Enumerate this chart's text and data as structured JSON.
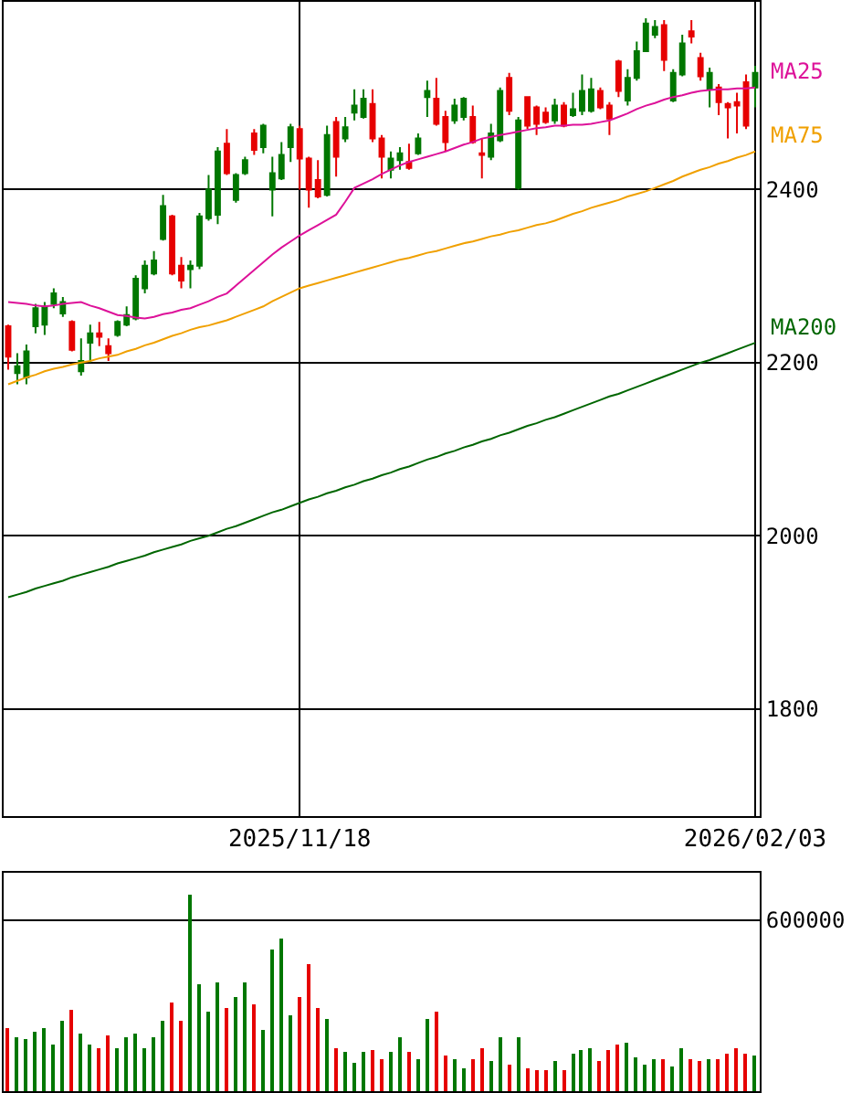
{
  "chart_data": [
    {
      "type": "candlestick",
      "categories": [
        null,
        null,
        null,
        null,
        null,
        null,
        null,
        null,
        null,
        null,
        null,
        null,
        null,
        null,
        null,
        null,
        null,
        null,
        null,
        null,
        null,
        null,
        null,
        null,
        null,
        null,
        null,
        null,
        null,
        null,
        null,
        null,
        "2025/11/18",
        null,
        null,
        null,
        null,
        null,
        null,
        null,
        null,
        null,
        null,
        null,
        null,
        null,
        null,
        null,
        null,
        null,
        null,
        null,
        null,
        null,
        null,
        null,
        null,
        null,
        null,
        null,
        null,
        null,
        null,
        null,
        null,
        null,
        null,
        null,
        null,
        null,
        null,
        null,
        null,
        null,
        null,
        null,
        null,
        null,
        null,
        null,
        null,
        null,
        "2026/02/03"
      ],
      "ohlc": [
        [
          2242,
          2244,
          2192,
          2207
        ],
        [
          2188,
          2211,
          2175,
          2196
        ],
        [
          2183,
          2221,
          2175,
          2213
        ],
        [
          2242,
          2268,
          2234,
          2263
        ],
        [
          2244,
          2270,
          2232,
          2265
        ],
        [
          2268,
          2286,
          2263,
          2280
        ],
        [
          2257,
          2276,
          2253,
          2270
        ],
        [
          2247,
          2249,
          2213,
          2215
        ],
        [
          2190,
          2228,
          2185,
          2202
        ],
        [
          2223,
          2244,
          2200,
          2234
        ],
        [
          2234,
          2247,
          2219,
          2230
        ],
        [
          2219,
          2228,
          2202,
          2211
        ],
        [
          2232,
          2249,
          2230,
          2247
        ],
        [
          2244,
          2265,
          2242,
          2255
        ],
        [
          2251,
          2301,
          2249,
          2297
        ],
        [
          2286,
          2318,
          2280,
          2312
        ],
        [
          2303,
          2329,
          2301,
          2318
        ],
        [
          2343,
          2394,
          2341,
          2381
        ],
        [
          2369,
          2371,
          2301,
          2303
        ],
        [
          2312,
          2322,
          2286,
          2295
        ],
        [
          2308,
          2318,
          2286,
          2312
        ],
        [
          2312,
          2373,
          2308,
          2369
        ],
        [
          2367,
          2417,
          2364,
          2400
        ],
        [
          2371,
          2449,
          2360,
          2444
        ],
        [
          2453,
          2470,
          2417,
          2419
        ],
        [
          2388,
          2419,
          2385,
          2417
        ],
        [
          2419,
          2438,
          2417,
          2434
        ],
        [
          2465,
          2470,
          2440,
          2446
        ],
        [
          2449,
          2476,
          2442,
          2474
        ],
        [
          2400,
          2438,
          2369,
          2419
        ],
        [
          2413,
          2455,
          2411,
          2440
        ],
        [
          2449,
          2476,
          2432,
          2472
        ],
        [
          2470,
          2474,
          2400,
          2436
        ],
        [
          2436,
          2438,
          2379,
          2400
        ],
        [
          2411,
          2434,
          2390,
          2392
        ],
        [
          2394,
          2474,
          2392,
          2463
        ],
        [
          2478,
          2484,
          2415,
          2438
        ],
        [
          2459,
          2484,
          2455,
          2472
        ],
        [
          2489,
          2516,
          2480,
          2497
        ],
        [
          2484,
          2516,
          2482,
          2505
        ],
        [
          2499,
          2516,
          2455,
          2459
        ],
        [
          2459,
          2463,
          2413,
          2438
        ],
        [
          2423,
          2444,
          2413,
          2436
        ],
        [
          2434,
          2449,
          2423,
          2442
        ],
        [
          2432,
          2453,
          2423,
          2425
        ],
        [
          2442,
          2465,
          2440,
          2459
        ],
        [
          2507,
          2526,
          2484,
          2514
        ],
        [
          2505,
          2529,
          2474,
          2476
        ],
        [
          2484,
          2491,
          2444,
          2455
        ],
        [
          2480,
          2505,
          2476,
          2497
        ],
        [
          2484,
          2507,
          2480,
          2505
        ],
        [
          2484,
          2497,
          2453,
          2455
        ],
        [
          2442,
          2459,
          2413,
          2440
        ],
        [
          2438,
          2476,
          2434,
          2465
        ],
        [
          2457,
          2518,
          2455,
          2514
        ],
        [
          2529,
          2535,
          2486,
          2491
        ],
        [
          2402,
          2484,
          2400,
          2480
        ],
        [
          2507,
          2507,
          2470,
          2474
        ],
        [
          2495,
          2497,
          2463,
          2476
        ],
        [
          2489,
          2495,
          2476,
          2478
        ],
        [
          2480,
          2505,
          2476,
          2497
        ],
        [
          2497,
          2501,
          2472,
          2474
        ],
        [
          2486,
          2512,
          2484,
          2493
        ],
        [
          2491,
          2533,
          2486,
          2514
        ],
        [
          2491,
          2529,
          2489,
          2516
        ],
        [
          2514,
          2518,
          2493,
          2495
        ],
        [
          2497,
          2501,
          2463,
          2482
        ],
        [
          2548,
          2550,
          2507,
          2514
        ],
        [
          2503,
          2539,
          2497,
          2529
        ],
        [
          2529,
          2571,
          2526,
          2560
        ],
        [
          2560,
          2598,
          2560,
          2592
        ],
        [
          2579,
          2596,
          2575,
          2588
        ],
        [
          2590,
          2596,
          2537,
          2550
        ],
        [
          2503,
          2539,
          2501,
          2535
        ],
        [
          2533,
          2579,
          2531,
          2569
        ],
        [
          2583,
          2596,
          2569,
          2577
        ],
        [
          2552,
          2558,
          2526,
          2531
        ],
        [
          2516,
          2541,
          2495,
          2535
        ],
        [
          2518,
          2522,
          2486,
          2501
        ],
        [
          2499,
          2501,
          2459,
          2495
        ],
        [
          2501,
          2512,
          2465,
          2497
        ],
        [
          2524,
          2533,
          2470,
          2474
        ],
        [
          2518,
          2543,
          2495,
          2535
        ]
      ],
      "colors": [
        "#e60000",
        "#007700",
        "#007700",
        "#007700",
        "#007700",
        "#007700",
        "#007700",
        "#e60000",
        "#007700",
        "#007700",
        "#e60000",
        "#e60000",
        "#007700",
        "#007700",
        "#007700",
        "#007700",
        "#007700",
        "#007700",
        "#e60000",
        "#e60000",
        "#007700",
        "#007700",
        "#007700",
        "#007700",
        "#e60000",
        "#007700",
        "#007700",
        "#e60000",
        "#007700",
        "#007700",
        "#007700",
        "#007700",
        "#e60000",
        "#e60000",
        "#e60000",
        "#007700",
        "#e60000",
        "#007700",
        "#007700",
        "#007700",
        "#e60000",
        "#e60000",
        "#007700",
        "#007700",
        "#e60000",
        "#007700",
        "#007700",
        "#e60000",
        "#e60000",
        "#007700",
        "#007700",
        "#e60000",
        "#e60000",
        "#007700",
        "#007700",
        "#e60000",
        "#007700",
        "#e60000",
        "#e60000",
        "#e60000",
        "#007700",
        "#e60000",
        "#007700",
        "#007700",
        "#007700",
        "#e60000",
        "#e60000",
        "#e60000",
        "#007700",
        "#007700",
        "#007700",
        "#007700",
        "#e60000",
        "#007700",
        "#007700",
        "#e60000",
        "#e60000",
        "#007700",
        "#e60000",
        "#e60000",
        "#e60000",
        "#e60000",
        "#007700"
      ],
      "series": [
        {
          "name": "MA25",
          "type": "line",
          "color": "#dd1199",
          "values": [
            2270,
            2269,
            2268,
            2266,
            2265,
            2266,
            2268,
            2269,
            2270,
            2266,
            2263,
            2259,
            2255,
            2254,
            2252,
            2251,
            2253,
            2256,
            2258,
            2261,
            2263,
            2267,
            2271,
            2276,
            2280,
            2289,
            2298,
            2307,
            2316,
            2325,
            2333,
            2340,
            2347,
            2353,
            2359,
            2365,
            2371,
            2386,
            2402,
            2407,
            2412,
            2418,
            2423,
            2428,
            2432,
            2435,
            2438,
            2441,
            2444,
            2448,
            2452,
            2455,
            2459,
            2461,
            2463,
            2465,
            2467,
            2469,
            2471,
            2472,
            2474,
            2474,
            2475,
            2475,
            2476,
            2478,
            2480,
            2484,
            2488,
            2493,
            2497,
            2500,
            2504,
            2507,
            2509,
            2512,
            2514,
            2515,
            2516,
            2516,
            2517,
            2517,
            2518
          ]
        },
        {
          "name": "MA75",
          "type": "line",
          "color": "#f0a000",
          "values": [
            2175,
            2179,
            2183,
            2186,
            2190,
            2193,
            2195,
            2198,
            2200,
            2202,
            2205,
            2207,
            2209,
            2213,
            2216,
            2220,
            2223,
            2227,
            2231,
            2234,
            2238,
            2241,
            2243,
            2246,
            2249,
            2253,
            2257,
            2261,
            2265,
            2271,
            2276,
            2281,
            2286,
            2289,
            2292,
            2295,
            2298,
            2301,
            2304,
            2307,
            2310,
            2313,
            2316,
            2319,
            2321,
            2324,
            2327,
            2329,
            2332,
            2335,
            2338,
            2340,
            2343,
            2346,
            2348,
            2351,
            2353,
            2356,
            2359,
            2361,
            2364,
            2368,
            2372,
            2375,
            2379,
            2382,
            2385,
            2388,
            2392,
            2395,
            2398,
            2402,
            2406,
            2410,
            2415,
            2419,
            2423,
            2426,
            2430,
            2433,
            2437,
            2440,
            2444
          ]
        },
        {
          "name": "MA200",
          "type": "line",
          "color": "#006600",
          "values": [
            1929,
            1932,
            1935,
            1939,
            1942,
            1945,
            1948,
            1952,
            1955,
            1958,
            1961,
            1964,
            1968,
            1971,
            1974,
            1977,
            1981,
            1984,
            1987,
            1990,
            1994,
            1997,
            2000,
            2004,
            2008,
            2011,
            2015,
            2019,
            2023,
            2027,
            2030,
            2034,
            2038,
            2042,
            2045,
            2049,
            2052,
            2056,
            2059,
            2063,
            2066,
            2070,
            2073,
            2077,
            2080,
            2084,
            2088,
            2091,
            2095,
            2098,
            2102,
            2105,
            2109,
            2112,
            2116,
            2119,
            2123,
            2127,
            2130,
            2134,
            2137,
            2141,
            2145,
            2149,
            2153,
            2157,
            2161,
            2164,
            2168,
            2172,
            2176,
            2180,
            2184,
            2188,
            2192,
            2196,
            2200,
            2203,
            2207,
            2211,
            2215,
            2219,
            2223
          ]
        }
      ],
      "ylim": [
        1676,
        2617
      ],
      "yticks": [
        1800,
        2000,
        2200,
        2400
      ],
      "grid": true
    },
    {
      "type": "bar",
      "categories": [
        null,
        null,
        null,
        null,
        null,
        null,
        null,
        null,
        null,
        null,
        null,
        null,
        null,
        null,
        null,
        null,
        null,
        null,
        null,
        null,
        null,
        null,
        null,
        null,
        null,
        null,
        null,
        null,
        null,
        null,
        null,
        null,
        "2025/11/18",
        null,
        null,
        null,
        null,
        null,
        null,
        null,
        null,
        null,
        null,
        null,
        null,
        null,
        null,
        null,
        null,
        null,
        null,
        null,
        null,
        null,
        null,
        null,
        null,
        null,
        null,
        null,
        null,
        null,
        null,
        null,
        null,
        null,
        null,
        null,
        null,
        null,
        null,
        null,
        null,
        null,
        null,
        null,
        null,
        null,
        null,
        null,
        null,
        null,
        "2026/02/03"
      ],
      "values": [
        223000,
        187000,
        181000,
        206000,
        223000,
        166000,
        245000,
        287000,
        204000,
        166000,
        153000,
        198000,
        153000,
        192000,
        204000,
        153000,
        192000,
        245000,
        309000,
        245000,
        692000,
        377000,
        277000,
        383000,
        294000,
        328000,
        383000,
        302000,
        217000,
        500000,
        536000,
        268000,
        332000,
        443000,
        294000,
        255000,
        149000,
        140000,
        102000,
        140000,
        147000,
        111000,
        140000,
        192000,
        140000,
        111000,
        251000,
        281000,
        123000,
        115000,
        83000,
        115000,
        153000,
        109000,
        192000,
        96000,
        192000,
        83000,
        77000,
        77000,
        109000,
        77000,
        134000,
        147000,
        153000,
        109000,
        147000,
        166000,
        172000,
        121000,
        96000,
        115000,
        115000,
        89000,
        153000,
        115000,
        109000,
        115000,
        115000,
        134000,
        153000,
        134000,
        128000
      ],
      "colors": [
        "#e60000",
        "#007700",
        "#007700",
        "#007700",
        "#007700",
        "#007700",
        "#007700",
        "#e60000",
        "#007700",
        "#007700",
        "#e60000",
        "#e60000",
        "#007700",
        "#007700",
        "#007700",
        "#007700",
        "#007700",
        "#007700",
        "#e60000",
        "#e60000",
        "#007700",
        "#007700",
        "#007700",
        "#007700",
        "#e60000",
        "#007700",
        "#007700",
        "#e60000",
        "#007700",
        "#007700",
        "#007700",
        "#007700",
        "#e60000",
        "#e60000",
        "#e60000",
        "#007700",
        "#e60000",
        "#007700",
        "#007700",
        "#007700",
        "#e60000",
        "#e60000",
        "#007700",
        "#007700",
        "#e60000",
        "#007700",
        "#007700",
        "#e60000",
        "#e60000",
        "#007700",
        "#007700",
        "#e60000",
        "#e60000",
        "#007700",
        "#007700",
        "#e60000",
        "#007700",
        "#e60000",
        "#e60000",
        "#e60000",
        "#007700",
        "#e60000",
        "#007700",
        "#007700",
        "#007700",
        "#e60000",
        "#e60000",
        "#e60000",
        "#007700",
        "#007700",
        "#007700",
        "#007700",
        "#e60000",
        "#007700",
        "#007700",
        "#e60000",
        "#e60000",
        "#007700",
        "#e60000",
        "#e60000",
        "#e60000",
        "#e60000",
        "#007700"
      ],
      "ylim": [
        0,
        766000
      ],
      "yticks": [
        600000
      ],
      "grid": "y",
      "tick_labels": "y"
    }
  ]
}
